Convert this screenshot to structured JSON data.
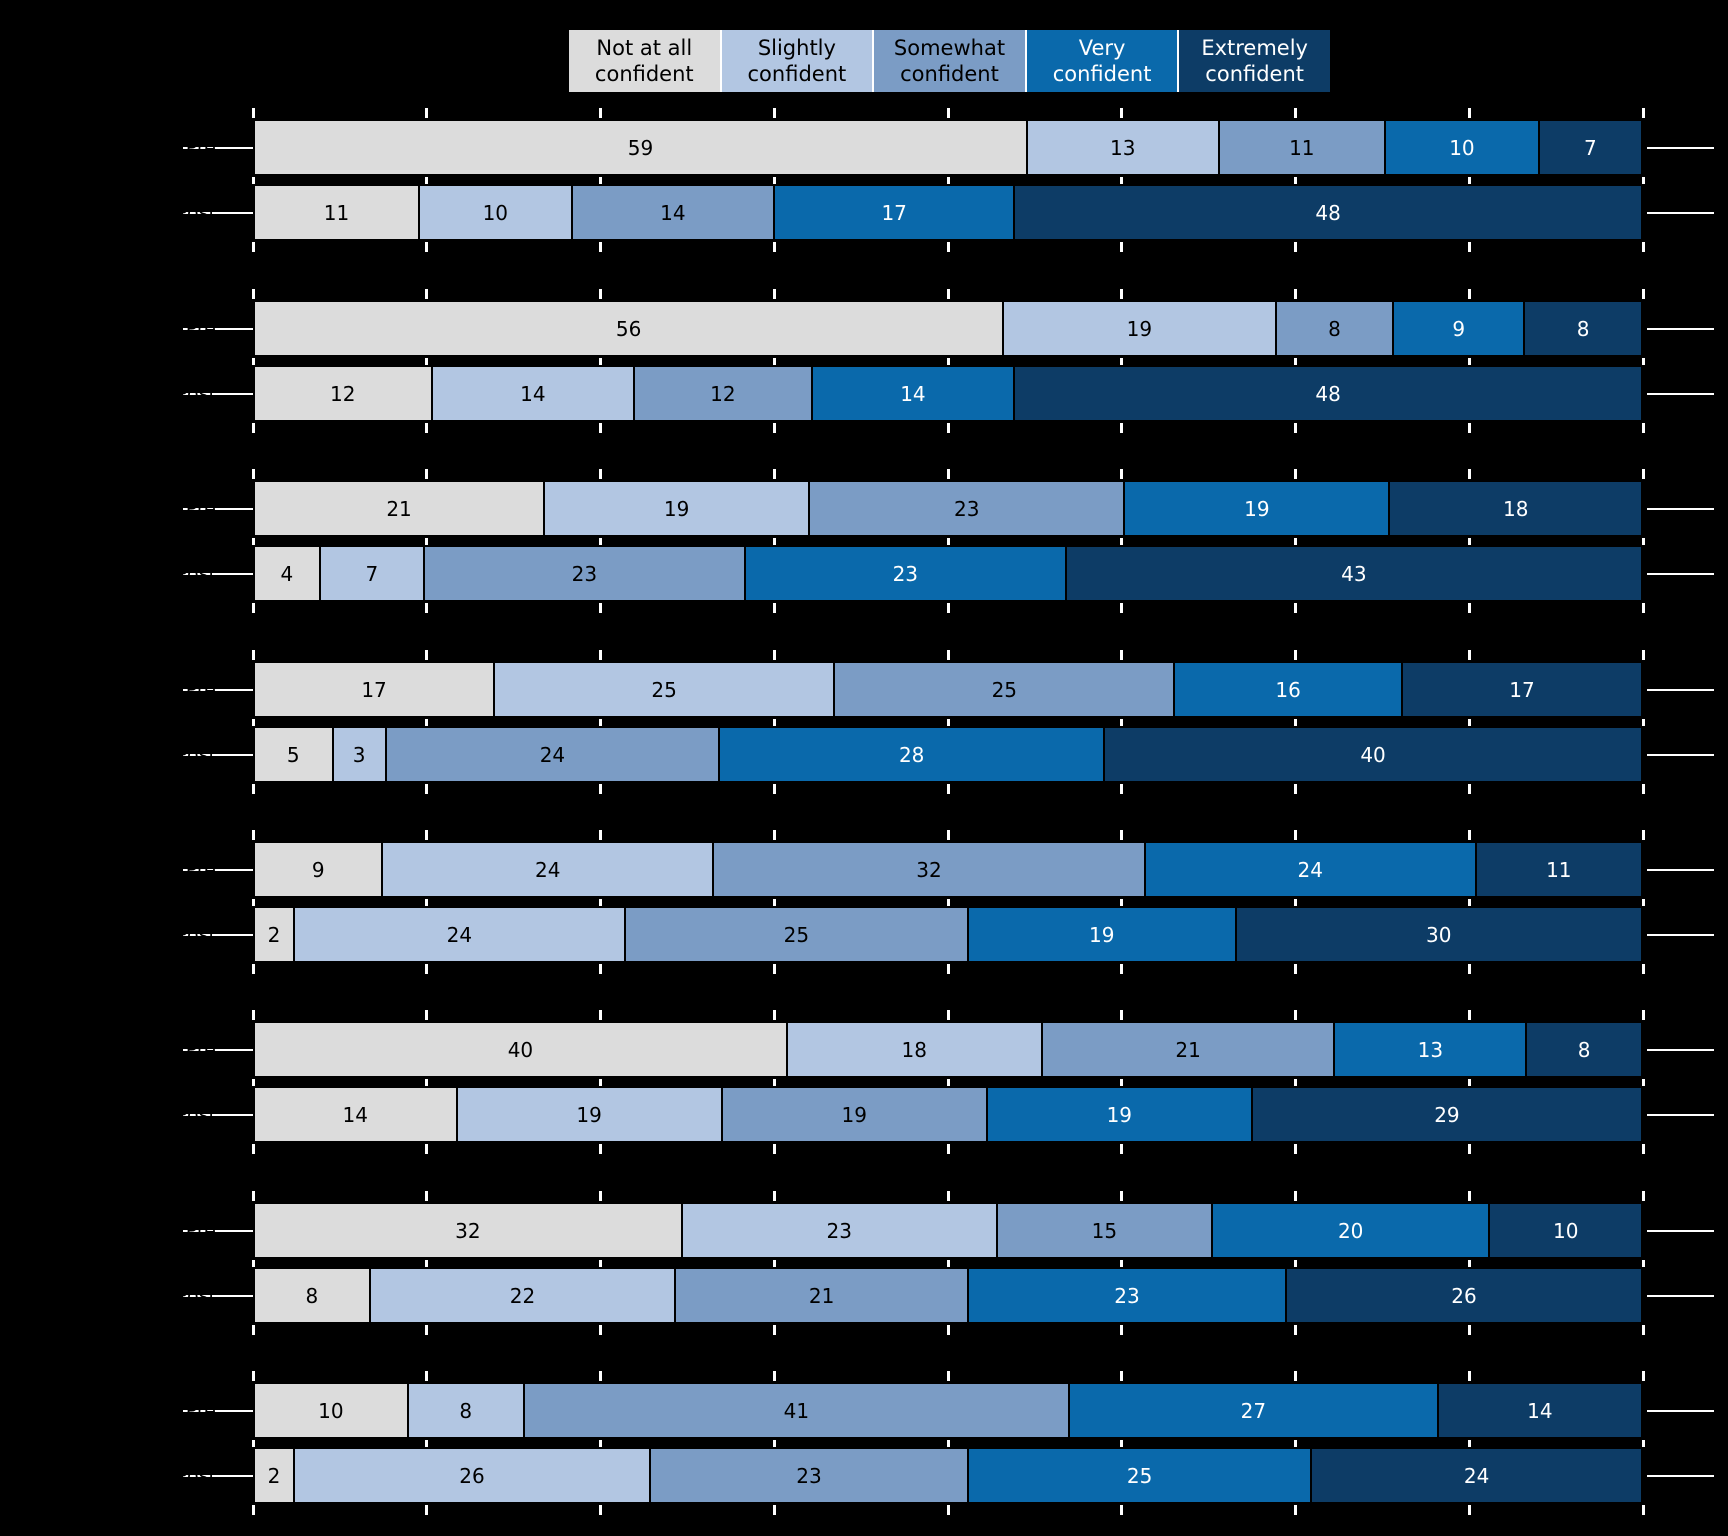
{
  "colors": {
    "background": "#000000",
    "tick": "#ffffff",
    "leader_line": "#ffffff",
    "bar_border": "#000000",
    "legend_background": "#ffffff"
  },
  "legend": {
    "items": [
      {
        "label": "Not at all\nconfident",
        "color": "#dcdcdc",
        "text_color": "#000000"
      },
      {
        "label": "Slightly\nconfident",
        "color": "#b2c6e2",
        "text_color": "#000000"
      },
      {
        "label": "Somewhat\nconfident",
        "color": "#7b9cc5",
        "text_color": "#000000"
      },
      {
        "label": "Very\nconfident",
        "color": "#0a69ab",
        "text_color": "#ffffff"
      },
      {
        "label": "Extremely\nconfident",
        "color": "#0d3c66",
        "text_color": "#ffffff"
      }
    ]
  },
  "chart_data": {
    "type": "bar",
    "orientation": "horizontal",
    "stacked": true,
    "title": "",
    "xlabel": "",
    "ylabel": "",
    "xlim": [
      0,
      100
    ],
    "tick_interval": 12.5,
    "grid": false,
    "legend_position": "top",
    "categories": [
      "Not at all confident",
      "Slightly confident",
      "Somewhat confident",
      "Very confident",
      "Extremely confident"
    ],
    "row_labels": [
      "Pre",
      "Post"
    ],
    "groups": [
      {
        "pre": [
          59,
          13,
          11,
          10,
          7
        ],
        "post": [
          11,
          10,
          14,
          17,
          48
        ]
      },
      {
        "pre": [
          56,
          19,
          8,
          9,
          8
        ],
        "post": [
          12,
          14,
          12,
          14,
          48
        ]
      },
      {
        "pre": [
          21,
          19,
          23,
          19,
          18
        ],
        "post": [
          4,
          7,
          23,
          23,
          43
        ]
      },
      {
        "pre": [
          17,
          25,
          25,
          16,
          17
        ],
        "post": [
          5,
          3,
          24,
          28,
          40
        ]
      },
      {
        "pre": [
          9,
          24,
          32,
          24,
          11
        ],
        "post": [
          2,
          24,
          25,
          19,
          30
        ]
      },
      {
        "pre": [
          40,
          18,
          21,
          13,
          8
        ],
        "post": [
          14,
          19,
          19,
          19,
          29
        ]
      },
      {
        "pre": [
          32,
          23,
          15,
          20,
          10
        ],
        "post": [
          8,
          22,
          21,
          23,
          26
        ]
      },
      {
        "pre": [
          10,
          8,
          41,
          27,
          14
        ],
        "post": [
          2,
          26,
          23,
          25,
          24
        ]
      }
    ]
  }
}
